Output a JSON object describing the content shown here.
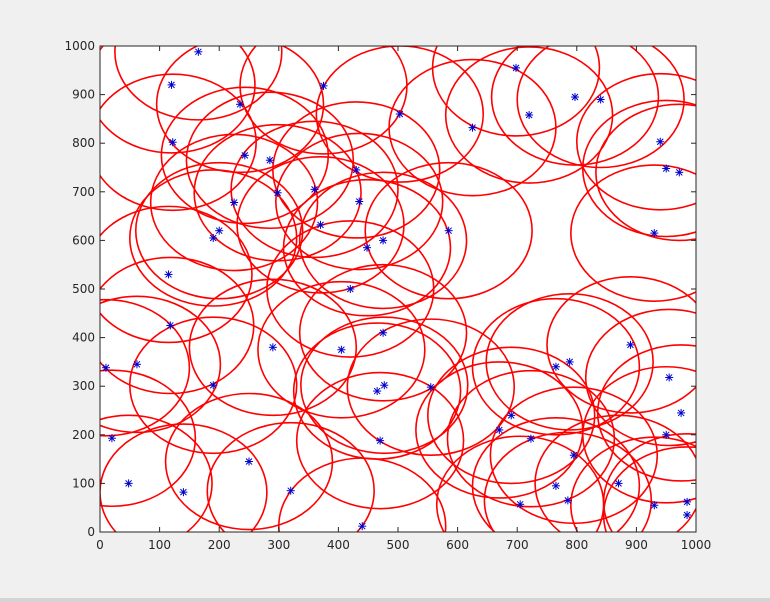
{
  "colors": {
    "figure_bg": "#f0f0f0",
    "axes_bg": "#ffffff",
    "circle": "#ff0000",
    "node": "#0000cc",
    "axis": "#262626"
  },
  "chart_data": {
    "type": "scatter",
    "title": "",
    "xlabel": "",
    "ylabel": "",
    "xlim": [
      0,
      1000
    ],
    "ylim": [
      0,
      1000
    ],
    "grid": false,
    "legend": "none",
    "marker": "asterisk",
    "circle_radius": 140,
    "x_ticks": [
      "0",
      "100",
      "200",
      "300",
      "400",
      "500",
      "600",
      "700",
      "800",
      "900",
      "1000"
    ],
    "y_ticks": [
      "0",
      "100",
      "200",
      "300",
      "400",
      "500",
      "600",
      "700",
      "800",
      "900",
      "1000"
    ],
    "points": [
      [
        165,
        988
      ],
      [
        120,
        920
      ],
      [
        375,
        918
      ],
      [
        698,
        955
      ],
      [
        503,
        860
      ],
      [
        720,
        858
      ],
      [
        625,
        832
      ],
      [
        797,
        895
      ],
      [
        840,
        890
      ],
      [
        122,
        802
      ],
      [
        243,
        775
      ],
      [
        285,
        765
      ],
      [
        235,
        880
      ],
      [
        940,
        803
      ],
      [
        950,
        748
      ],
      [
        972,
        740
      ],
      [
        298,
        698
      ],
      [
        360,
        705
      ],
      [
        225,
        678
      ],
      [
        430,
        745
      ],
      [
        435,
        680
      ],
      [
        370,
        632
      ],
      [
        200,
        620
      ],
      [
        190,
        605
      ],
      [
        448,
        585
      ],
      [
        475,
        600
      ],
      [
        585,
        620
      ],
      [
        930,
        615
      ],
      [
        115,
        530
      ],
      [
        420,
        500
      ],
      [
        118,
        425
      ],
      [
        475,
        410
      ],
      [
        405,
        375
      ],
      [
        290,
        380
      ],
      [
        10,
        338
      ],
      [
        62,
        345
      ],
      [
        190,
        302
      ],
      [
        465,
        290
      ],
      [
        477,
        302
      ],
      [
        555,
        298
      ],
      [
        765,
        340
      ],
      [
        788,
        350
      ],
      [
        890,
        385
      ],
      [
        955,
        318
      ],
      [
        20,
        193
      ],
      [
        470,
        188
      ],
      [
        670,
        210
      ],
      [
        723,
        192
      ],
      [
        795,
        158
      ],
      [
        975,
        245
      ],
      [
        250,
        145
      ],
      [
        48,
        100
      ],
      [
        140,
        82
      ],
      [
        320,
        85
      ],
      [
        440,
        12
      ],
      [
        705,
        57
      ],
      [
        765,
        95
      ],
      [
        785,
        65
      ],
      [
        870,
        100
      ],
      [
        930,
        55
      ],
      [
        985,
        62
      ],
      [
        985,
        35
      ],
      [
        950,
        200
      ],
      [
        690,
        240
      ]
    ]
  }
}
